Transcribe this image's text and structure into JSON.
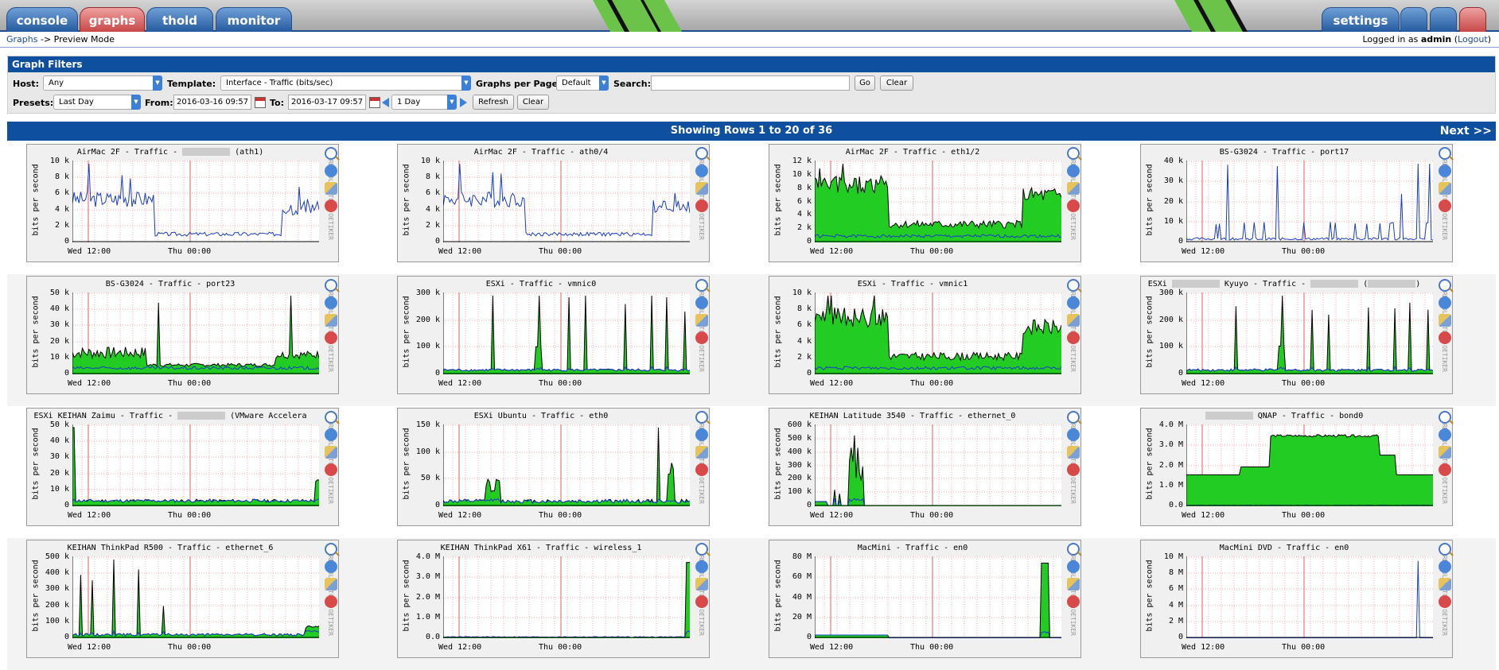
{
  "tabs": [
    {
      "label": "console"
    },
    {
      "label": "graphs"
    },
    {
      "label": "thold"
    },
    {
      "label": "monitor"
    },
    {
      "label": "settings"
    }
  ],
  "breadcrumb": {
    "link": "Graphs",
    "sep": " -> ",
    "current": "Preview Mode"
  },
  "login": {
    "prefix": "Logged in as ",
    "user": "admin",
    "logout": "Logout"
  },
  "filters": {
    "title": "Graph Filters",
    "host_label": "Host:",
    "host_value": "Any",
    "template_label": "Template:",
    "template_value": "Interface - Traffic (bits/sec)",
    "gpp_label": "Graphs per Page:",
    "gpp_value": "Default",
    "search_label": "Search:",
    "search_value": "",
    "go": "Go",
    "clear": "Clear",
    "presets_label": "Presets:",
    "presets_value": "Last Day",
    "from_label": "From:",
    "from_value": "2016-03-16 09:57",
    "to_label": "To:",
    "to_value": "2016-03-17 09:57",
    "span_value": "1 Day",
    "refresh": "Refresh",
    "clear2": "Clear"
  },
  "rows": {
    "text": "Showing Rows 1 to 20 of 36",
    "next": "Next >>"
  },
  "ylabel": "bits per second",
  "side_text": "RRDTOOL / TOBI OETIKER",
  "xticks": [
    "Wed 12:00",
    "Thu 00:00"
  ],
  "graphs": [
    {
      "pre": "AirMac 2F - Traffic - ",
      "blur": true,
      "post": " (ath1)",
      "yt": [
        "10 k",
        "8 k",
        "6 k",
        "4 k",
        "2 k",
        "0"
      ],
      "kind": "line",
      "shape": "airmac",
      "fill": false
    },
    {
      "pre": "AirMac 2F - Traffic - ath0/4",
      "blur": false,
      "post": "",
      "yt": [
        "10 k",
        "8 k",
        "6 k",
        "4 k",
        "2 k",
        "0"
      ],
      "kind": "line",
      "shape": "airmac",
      "fill": false
    },
    {
      "pre": "AirMac 2F - Traffic - eth1/2",
      "blur": false,
      "post": "",
      "yt": [
        "12 k",
        "10 k",
        "8 k",
        "6 k",
        "4 k",
        "2 k",
        "0"
      ],
      "kind": "area",
      "shape": "vmnic",
      "fill": true
    },
    {
      "pre": "BS-G3024 - Traffic - port17",
      "blur": false,
      "post": "",
      "yt": [
        "40 k",
        "30 k",
        "20 k",
        "10 k",
        "0"
      ],
      "kind": "spike",
      "shape": "port17",
      "fill": false
    },
    {
      "pre": "BS-G3024 - Traffic - port23",
      "blur": false,
      "post": "",
      "yt": [
        "50 k",
        "40 k",
        "30 k",
        "20 k",
        "10 k",
        "0"
      ],
      "kind": "area",
      "shape": "port23",
      "fill": true
    },
    {
      "pre": "ESXi - Traffic - vmnic0",
      "blur": false,
      "post": "",
      "yt": [
        "300 k",
        "200 k",
        "100 k",
        "0"
      ],
      "kind": "spike",
      "shape": "vmnic0",
      "fill": true
    },
    {
      "pre": "ESXi - Traffic - vmnic1",
      "blur": false,
      "post": "",
      "yt": [
        "10 k",
        "8 k",
        "6 k",
        "4 k",
        "2 k",
        "0"
      ],
      "kind": "area",
      "shape": "vmnic",
      "fill": true
    },
    {
      "pre": "ESXi ",
      "blur": true,
      "post": " Kyuyo - Traffic - ",
      "blur2": true,
      "post2": " (",
      "blur3": true,
      "post3": ")",
      "yt": [
        "300 k",
        "200 k",
        "100 k",
        "0"
      ],
      "kind": "spike",
      "shape": "vmnic0",
      "fill": true
    },
    {
      "pre": "ESXi KEIHAN Zaimu - Traffic - ",
      "blur": true,
      "post": " (VMware Accelera",
      "yt": [
        "50 k",
        "40 k",
        "30 k",
        "20 k",
        "10 k",
        "0"
      ],
      "kind": "area",
      "shape": "zaimu",
      "fill": true
    },
    {
      "pre": "ESXi Ubuntu - Traffic - eth0",
      "blur": false,
      "post": "",
      "yt": [
        "150 k",
        "100 k",
        "50 k",
        "0"
      ],
      "kind": "spike",
      "shape": "ubuntu",
      "fill": true
    },
    {
      "pre": "KEIHAN Latitude 3540 - Traffic - ethernet_0",
      "blur": false,
      "post": "",
      "yt": [
        "600 k",
        "500 k",
        "400 k",
        "300 k",
        "200 k",
        "100 k",
        "0"
      ],
      "kind": "spike",
      "shape": "latitude",
      "fill": true
    },
    {
      "pre": "",
      "blur": true,
      "post": " QNAP - Traffic - bond0",
      "yt": [
        "4.0 M",
        "3.0 M",
        "2.0 M",
        "1.0 M",
        "0.0"
      ],
      "kind": "area",
      "shape": "qnap",
      "fill": true
    },
    {
      "pre": "KEIHAN ThinkPad R500 - Traffic - ethernet_6",
      "blur": false,
      "post": "",
      "yt": [
        "500 k",
        "400 k",
        "300 k",
        "200 k",
        "100 k",
        "0"
      ],
      "kind": "spike",
      "shape": "r500",
      "fill": true
    },
    {
      "pre": "KEIHAN ThinkPad X61 - Traffic - wireless_1",
      "blur": false,
      "post": "",
      "yt": [
        "4.0 M",
        "3.0 M",
        "2.0 M",
        "1.0 M",
        "0.0"
      ],
      "kind": "spike",
      "shape": "x61",
      "fill": true
    },
    {
      "pre": "MacMini - Traffic - en0",
      "blur": false,
      "post": "",
      "yt": [
        "80 M",
        "60 M",
        "40 M",
        "20 M",
        "0"
      ],
      "kind": "spike",
      "shape": "macmini",
      "fill": true
    },
    {
      "pre": "MacMini DVD - Traffic - en0",
      "blur": false,
      "post": "",
      "yt": [
        "10 M",
        "8 M",
        "6 M",
        "4 M",
        "2 M",
        "0"
      ],
      "kind": "spike",
      "shape": "dvd",
      "fill": false
    }
  ],
  "colors": {
    "green": "#22cc22",
    "blue": "#1a3cc8",
    "grid": "#f0b0b0",
    "bar": "#0f4f9f"
  }
}
